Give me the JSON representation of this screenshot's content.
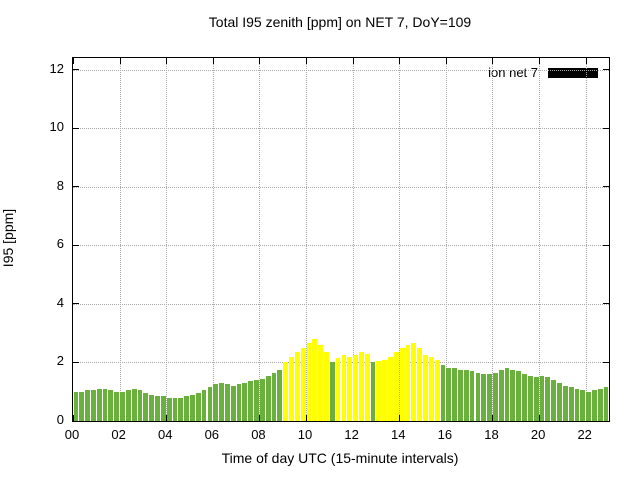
{
  "chart_data": {
    "type": "bar",
    "title": "Total I95 zenith [ppm] on NET 7, DoY=109",
    "xlabel": "Time of day UTC (15-minute intervals)",
    "ylabel": "I95 [ppm]",
    "legend": {
      "label": "ion net 7",
      "swatch_color": "#000000",
      "position": "top-right-inside"
    },
    "grid": true,
    "xlim_hours": [
      0,
      23
    ],
    "ylim": [
      0,
      12.4
    ],
    "xtick_hours": [
      0,
      2,
      4,
      6,
      8,
      10,
      12,
      14,
      16,
      18,
      20,
      22
    ],
    "xticks": [
      "00",
      "02",
      "04",
      "06",
      "08",
      "10",
      "12",
      "14",
      "16",
      "18",
      "20",
      "22"
    ],
    "yticks": [
      0,
      2,
      4,
      6,
      8,
      10,
      12
    ],
    "interval_minutes": 15,
    "start_time": "00:00",
    "bar_colors": {
      "g": "#6ab03c",
      "y": "#ffff00"
    },
    "colors": "ggggggggggggggggggggggggggggggggggggyyyyyyyygyyyyyygyyyyyyyyyyyggggggggggggggggggggggggggggg",
    "values": [
      1.0,
      1.0,
      1.05,
      1.05,
      1.1,
      1.1,
      1.05,
      1.0,
      1.0,
      1.05,
      1.1,
      1.05,
      0.95,
      0.9,
      0.85,
      0.85,
      0.8,
      0.8,
      0.8,
      0.85,
      0.9,
      0.95,
      1.05,
      1.15,
      1.25,
      1.3,
      1.25,
      1.2,
      1.25,
      1.3,
      1.35,
      1.4,
      1.45,
      1.55,
      1.65,
      1.75,
      2.0,
      2.2,
      2.35,
      2.5,
      2.65,
      2.8,
      2.6,
      2.35,
      2.0,
      2.15,
      2.25,
      2.2,
      2.25,
      2.35,
      2.3,
      2.0,
      2.05,
      2.1,
      2.2,
      2.35,
      2.5,
      2.6,
      2.65,
      2.5,
      2.25,
      2.2,
      2.1,
      1.9,
      1.8,
      1.8,
      1.75,
      1.75,
      1.7,
      1.65,
      1.6,
      1.6,
      1.65,
      1.75,
      1.8,
      1.75,
      1.7,
      1.6,
      1.55,
      1.5,
      1.55,
      1.5,
      1.4,
      1.3,
      1.2,
      1.15,
      1.1,
      1.05,
      1.0,
      1.05,
      1.1,
      1.15
    ]
  }
}
